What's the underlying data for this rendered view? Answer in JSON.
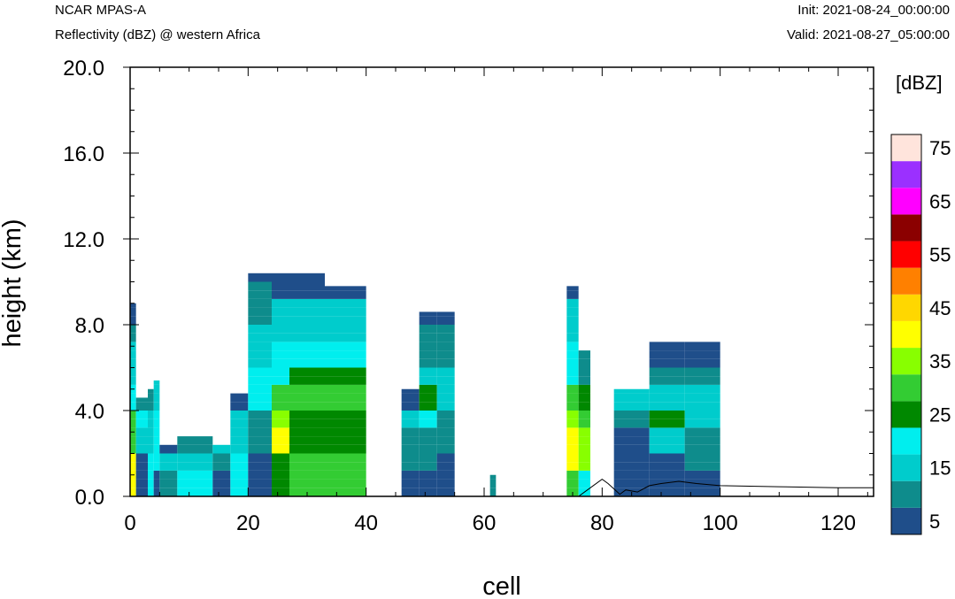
{
  "header": {
    "model": "NCAR MPAS-A",
    "subtitle": "Reflectivity (dBZ) @ western Africa",
    "init": "Init: 2021-08-24_00:00:00",
    "valid": "Valid: 2021-08-27_05:00:00"
  },
  "chart_data": {
    "type": "heatmap",
    "title": "Reflectivity (dBZ) @ western Africa",
    "xlabel": "cell",
    "ylabel": "height (km)",
    "xlim": [
      0,
      126
    ],
    "ylim": [
      0,
      20
    ],
    "xticks": [
      "0",
      "20",
      "40",
      "60",
      "80",
      "100",
      "120"
    ],
    "yticks": [
      "0.0",
      "4.0",
      "8.0",
      "12.0",
      "16.0",
      "20.0"
    ],
    "colorbar": {
      "label": "[dBZ]",
      "labels": [
        "5",
        "15",
        "25",
        "35",
        "45",
        "55",
        "65",
        "75"
      ],
      "levels": [
        5,
        10,
        15,
        20,
        25,
        30,
        35,
        40,
        45,
        50,
        55,
        60,
        65,
        70,
        75
      ],
      "colors": [
        "#1f4e8a",
        "#0e8c8c",
        "#00cccc",
        "#00eeee",
        "#008800",
        "#33cc33",
        "#88ff00",
        "#ffff00",
        "#ffd700",
        "#ff8000",
        "#ff0000",
        "#8b0000",
        "#ff00ff",
        "#9b30ff",
        "#ffe4dc"
      ]
    },
    "column_profiles": [
      {
        "x": [
          0,
          1
        ],
        "ytop": 9.0,
        "profile": "8:5,7:10,5:15,4:20,2:30,0:40"
      },
      {
        "x": [
          1,
          3
        ],
        "ytop": 4.6,
        "profile": "4:10,3:20,2:15,0:5"
      },
      {
        "x": [
          3,
          4
        ],
        "ytop": 5.0,
        "profile": "4:10,2:15,0:20"
      },
      {
        "x": [
          4,
          5
        ],
        "ytop": 5.4,
        "profile": "4:15,1:20,0:5"
      },
      {
        "x": [
          5,
          8
        ],
        "ytop": 2.4,
        "profile": "2:5,1:15,0:10"
      },
      {
        "x": [
          8,
          14
        ],
        "ytop": 2.8,
        "profile": "2:10,1:15,0:20"
      },
      {
        "x": [
          14,
          17
        ],
        "ytop": 2.4,
        "profile": "2:15,1:10,0:5"
      },
      {
        "x": [
          17,
          20
        ],
        "ytop": 4.8,
        "profile": "4:5,2:15,0:20"
      },
      {
        "x": [
          20,
          24
        ],
        "ytop": 10.4,
        "profile": "10:5,8:10,6:15,4:20,2:10,0:5"
      },
      {
        "x": [
          24,
          27
        ],
        "ytop": 10.4,
        "profile": "9:5,7:15,5:20,4:30,3:35,2:40,0:25"
      },
      {
        "x": [
          27,
          33
        ],
        "ytop": 10.4,
        "profile": "9:5,7:15,6:20,5:25,4:30,2:25,0:30"
      },
      {
        "x": [
          33,
          40
        ],
        "ytop": 9.8,
        "profile": "9:5,7:15,6:20,5:25,4:30,2:25,0:30"
      },
      {
        "x": [
          46,
          49
        ],
        "ytop": 5.0,
        "profile": "4:5,3:15,1:10,0:5"
      },
      {
        "x": [
          49,
          52
        ],
        "ytop": 8.6,
        "profile": "8:5,6:10,5:15,4:25,3:20,1:10,0:5"
      },
      {
        "x": [
          52,
          55
        ],
        "ytop": 8.6,
        "profile": "8:5,6:10,4:15,2:10,0:5"
      },
      {
        "x": [
          61,
          62
        ],
        "ytop": 1.0,
        "profile": "0:10"
      },
      {
        "x": [
          74,
          76
        ],
        "ytop": 9.8,
        "profile": "9:5,7:15,5:20,4:30,3:35,1:40,0:30"
      },
      {
        "x": [
          76,
          78
        ],
        "ytop": 6.8,
        "profile": "5:10,4:25,3:30,1:35,0:20"
      },
      {
        "x": [
          82,
          88
        ],
        "ytop": 5.0,
        "profile": "4:15,3:10,0:5"
      },
      {
        "x": [
          88,
          94
        ],
        "ytop": 7.2,
        "profile": "6:5,5:10,4:15,3:25,2:15,0:5"
      },
      {
        "x": [
          94,
          100
        ],
        "ytop": 7.2,
        "profile": "6:5,5:10,3:15,1:10,0:5"
      }
    ],
    "terrain_line": {
      "x": [
        76,
        78,
        80,
        81,
        83,
        84,
        86,
        88,
        90,
        93,
        96,
        100,
        110,
        120,
        126
      ],
      "y": [
        0.0,
        0.4,
        0.8,
        0.6,
        0.1,
        0.3,
        0.2,
        0.5,
        0.6,
        0.7,
        0.6,
        0.5,
        0.45,
        0.4,
        0.4
      ]
    }
  }
}
